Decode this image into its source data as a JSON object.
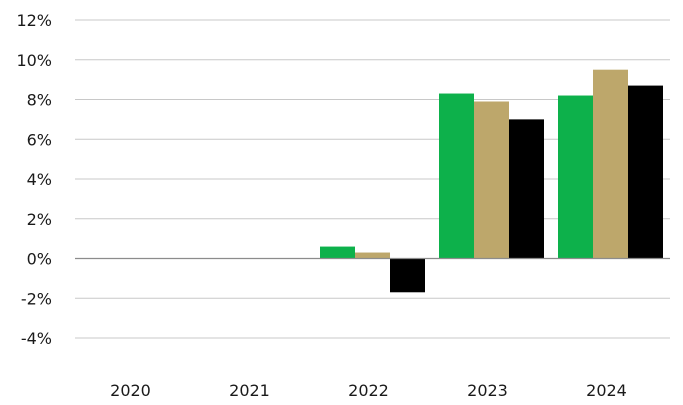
{
  "chart_data": {
    "type": "bar",
    "categories": [
      "2020",
      "2021",
      "2022",
      "2023",
      "2024"
    ],
    "series": [
      {
        "color": "#0db14b",
        "values": [
          0,
          0,
          0.6,
          8.3,
          8.2
        ]
      },
      {
        "color": "#bda76b",
        "values": [
          0,
          0,
          0.3,
          7.9,
          9.5
        ]
      },
      {
        "color": "#000000",
        "values": [
          0,
          0,
          -1.7,
          7.0,
          8.7
        ]
      }
    ],
    "y_ticks": [
      "12%",
      "10%",
      "8%",
      "6%",
      "4%",
      "2%",
      "0%",
      "-2%",
      "-4%"
    ],
    "ylim": [
      -4,
      12
    ],
    "grid": true,
    "legend": "none",
    "title": "",
    "xlabel": "",
    "ylabel": ""
  }
}
